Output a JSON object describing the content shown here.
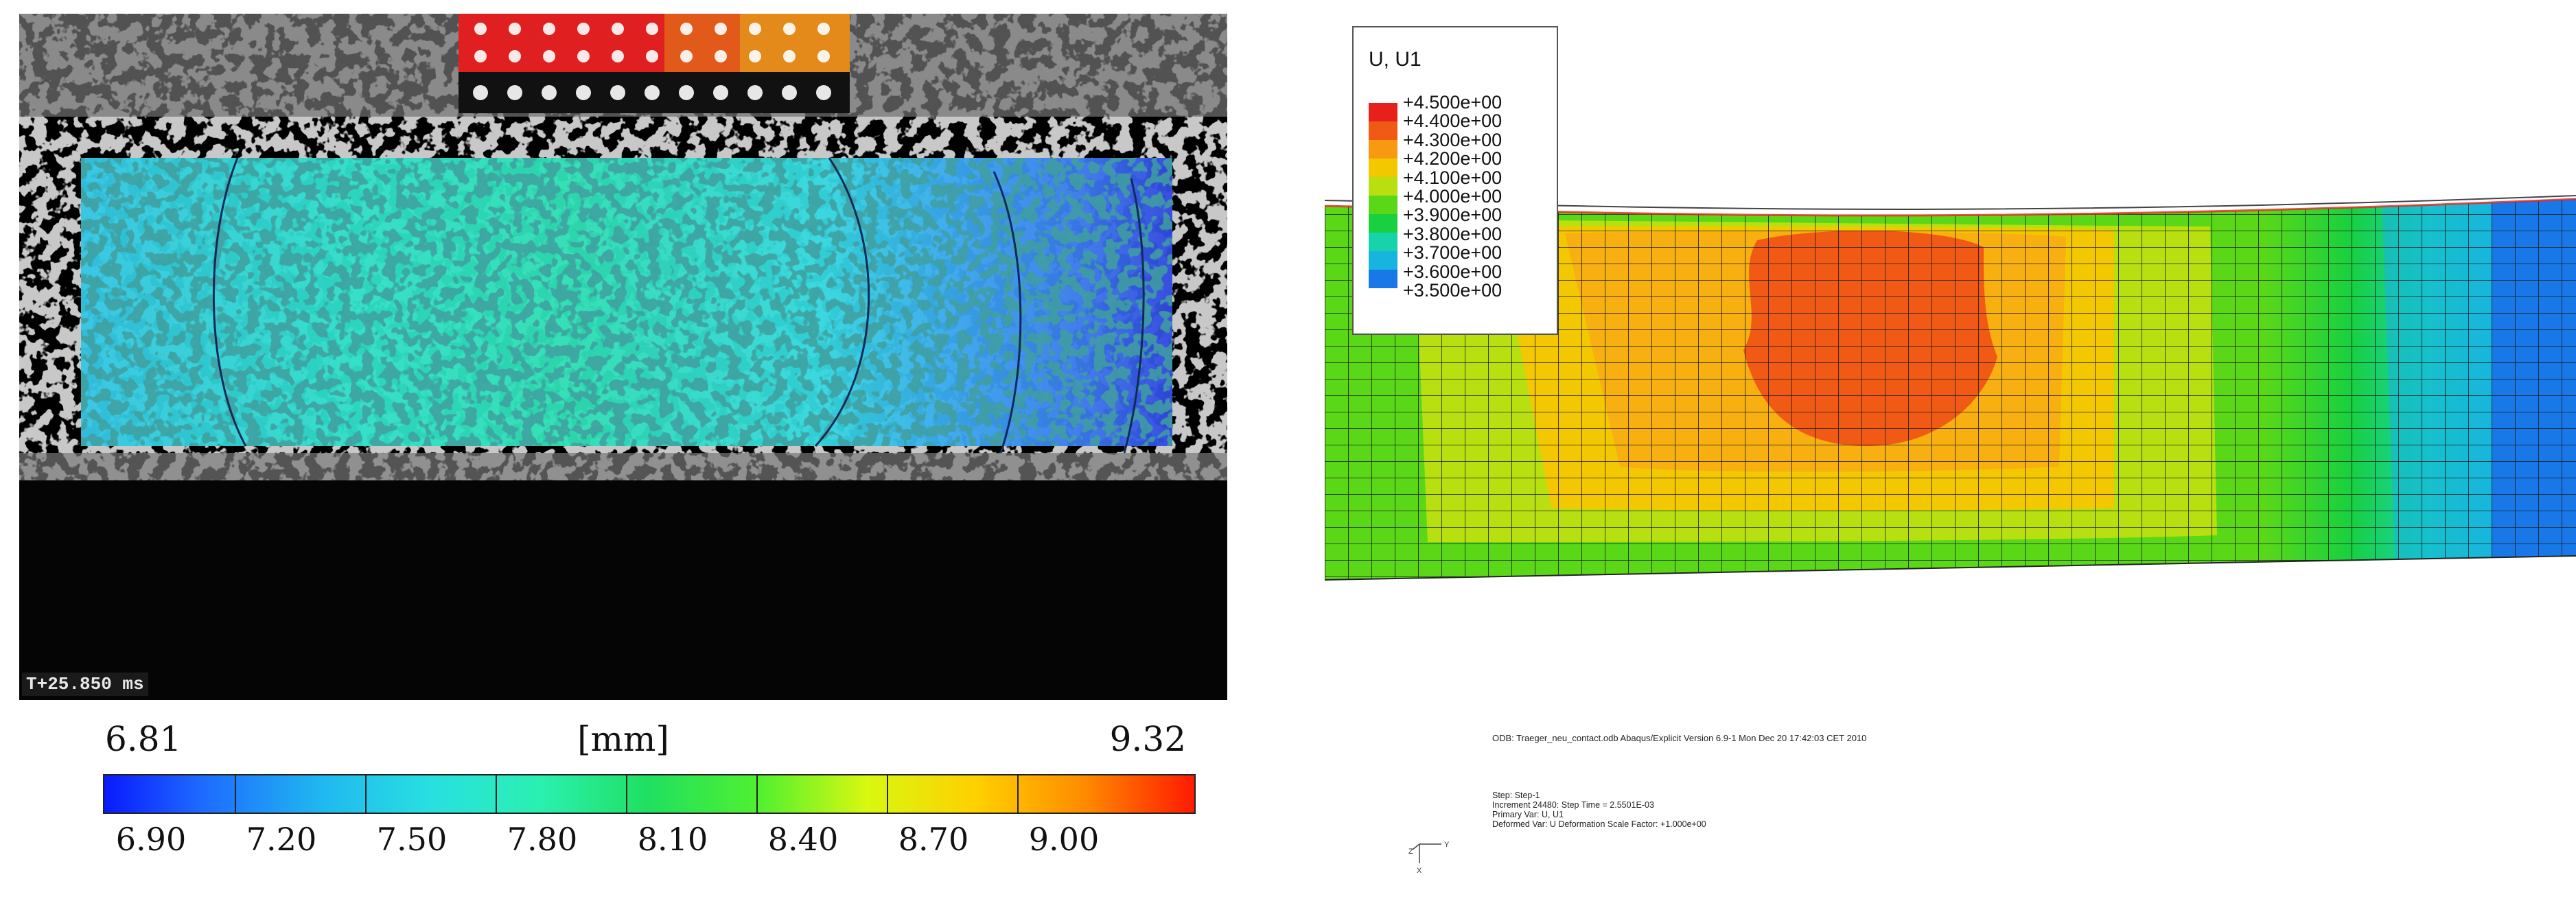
{
  "left_panel": {
    "timestamp": "T+25.850 ms",
    "colorbar": {
      "min_label": "6.81",
      "max_label": "9.32",
      "unit": "[mm]",
      "tick_labels": [
        "6.90",
        "7.20",
        "7.50",
        "7.80",
        "8.10",
        "8.40",
        "8.70",
        "9.00"
      ]
    }
  },
  "right_panel": {
    "legend": {
      "title": "U, U1",
      "labels": [
        "+4.500e+00",
        "+4.400e+00",
        "+4.300e+00",
        "+4.200e+00",
        "+4.100e+00",
        "+4.000e+00",
        "+3.900e+00",
        "+3.800e+00",
        "+3.700e+00",
        "+3.600e+00",
        "+3.500e+00"
      ],
      "colors": [
        "#e8201c",
        "#f05a14",
        "#f79a12",
        "#f4c800",
        "#b8e010",
        "#5ad818",
        "#18d040",
        "#16d3ac",
        "#18b4e0",
        "#1878e8",
        "#1438c8"
      ]
    },
    "footer": {
      "odb_line": "ODB: Traeger_neu_contact.odb    Abaqus/Explicit Version 6.9-1    Mon Dec 20 17:42:03 CET 2010",
      "step_lines": [
        "Step: Step-1",
        "Increment    24480: Step Time =   2.5501E-03",
        "Primary Var: U, U1",
        "Deformed Var: U   Deformation Scale Factor: +1.000e+00"
      ],
      "triad_labels": [
        "Y",
        "Z",
        "X"
      ]
    }
  }
}
